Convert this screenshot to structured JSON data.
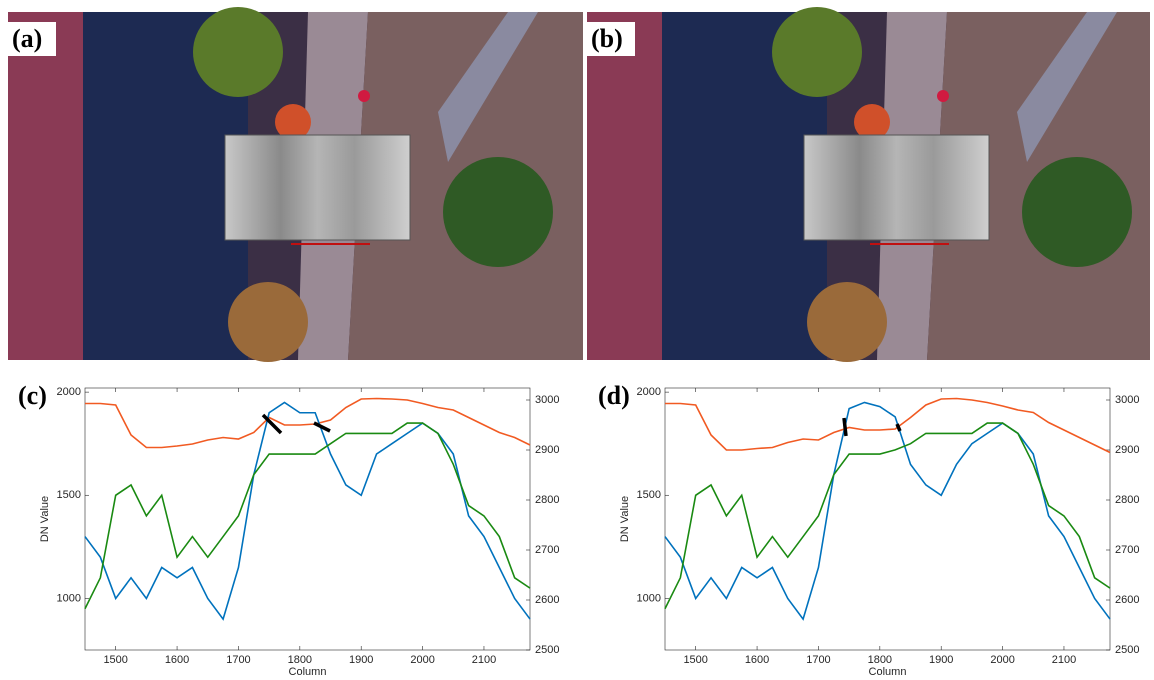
{
  "images": [
    {
      "label": "(a)"
    },
    {
      "label": "(b)"
    }
  ],
  "chart_data": [
    {
      "type": "line",
      "panel_label": "(c)",
      "xlabel": "Column",
      "ylabel": "DN Value",
      "x": [
        1450,
        1475,
        1500,
        1525,
        1550,
        1575,
        1600,
        1625,
        1650,
        1675,
        1700,
        1725,
        1750,
        1775,
        1800,
        1825,
        1850,
        1875,
        1900,
        1925,
        1950,
        1975,
        2000,
        2025,
        2050,
        2075,
        2100,
        2125,
        2150,
        2175
      ],
      "xlim": [
        1450,
        2175
      ],
      "xticks": [
        1500,
        1600,
        1700,
        1800,
        1900,
        2000,
        2100
      ],
      "ylim": [
        750,
        2020
      ],
      "yticks": [
        1000,
        1500,
        2000
      ],
      "y2lim": [
        2500,
        3024
      ],
      "y2ticks": [
        2500,
        2600,
        2700,
        2800,
        2900,
        3000
      ],
      "series": [
        {
          "color": "#f15a22",
          "axis": "y2",
          "values": [
            2993,
            2993,
            2990,
            2930,
            2905,
            2905,
            2908,
            2912,
            2920,
            2925,
            2922,
            2935,
            2965,
            2950,
            2950,
            2952,
            2960,
            2985,
            3002,
            3003,
            3002,
            3000,
            2993,
            2985,
            2980,
            2965,
            2950,
            2935,
            2925,
            2910
          ]
        },
        {
          "color": "#0072bd",
          "values": [
            1300,
            1200,
            1000,
            1100,
            1000,
            1150,
            1100,
            1150,
            1000,
            900,
            1150,
            1600,
            1900,
            1950,
            1900,
            1900,
            1700,
            1550,
            1500,
            1700,
            1750,
            1800,
            1850,
            1800,
            1700,
            1400,
            1300,
            1150,
            1000,
            900
          ]
        },
        {
          "color": "#1a8a12",
          "values": [
            950,
            1100,
            1500,
            1550,
            1400,
            1500,
            1200,
            1300,
            1200,
            1300,
            1400,
            1600,
            1700,
            1700,
            1700,
            1700,
            1750,
            1800,
            1800,
            1800,
            1800,
            1850,
            1850,
            1800,
            1650,
            1450,
            1400,
            1300,
            1100,
            1050
          ]
        }
      ]
    },
    {
      "type": "line",
      "panel_label": "(d)",
      "xlabel": "Column",
      "ylabel": "DN Value",
      "x": [
        1450,
        1475,
        1500,
        1525,
        1550,
        1575,
        1600,
        1625,
        1650,
        1675,
        1700,
        1725,
        1750,
        1775,
        1800,
        1825,
        1850,
        1875,
        1900,
        1925,
        1950,
        1975,
        2000,
        2025,
        2050,
        2075,
        2100,
        2125,
        2150,
        2175
      ],
      "xlim": [
        1450,
        2175
      ],
      "xticks": [
        1500,
        1600,
        1700,
        1800,
        1900,
        2000,
        2100
      ],
      "ylim": [
        750,
        2020
      ],
      "yticks": [
        1000,
        1500,
        2000
      ],
      "y2lim": [
        2500,
        3024
      ],
      "y2ticks": [
        2500,
        2600,
        2700,
        2800,
        2900,
        3000
      ],
      "series": [
        {
          "color": "#f15a22",
          "axis": "y2",
          "values": [
            2993,
            2993,
            2990,
            2930,
            2900,
            2900,
            2903,
            2905,
            2915,
            2922,
            2920,
            2935,
            2945,
            2940,
            2940,
            2942,
            2965,
            2990,
            3002,
            3003,
            3000,
            2995,
            2988,
            2980,
            2975,
            2955,
            2940,
            2925,
            2910,
            2895
          ]
        },
        {
          "color": "#0072bd",
          "values": [
            1300,
            1200,
            1000,
            1100,
            1000,
            1150,
            1100,
            1150,
            1000,
            900,
            1150,
            1600,
            1920,
            1950,
            1930,
            1880,
            1650,
            1550,
            1500,
            1650,
            1750,
            1800,
            1850,
            1800,
            1700,
            1400,
            1300,
            1150,
            1000,
            900
          ]
        },
        {
          "color": "#1a8a12",
          "values": [
            950,
            1100,
            1500,
            1550,
            1400,
            1500,
            1200,
            1300,
            1200,
            1300,
            1400,
            1600,
            1700,
            1700,
            1700,
            1720,
            1750,
            1800,
            1800,
            1800,
            1800,
            1850,
            1850,
            1800,
            1650,
            1450,
            1400,
            1300,
            1100,
            1050
          ]
        }
      ]
    }
  ]
}
